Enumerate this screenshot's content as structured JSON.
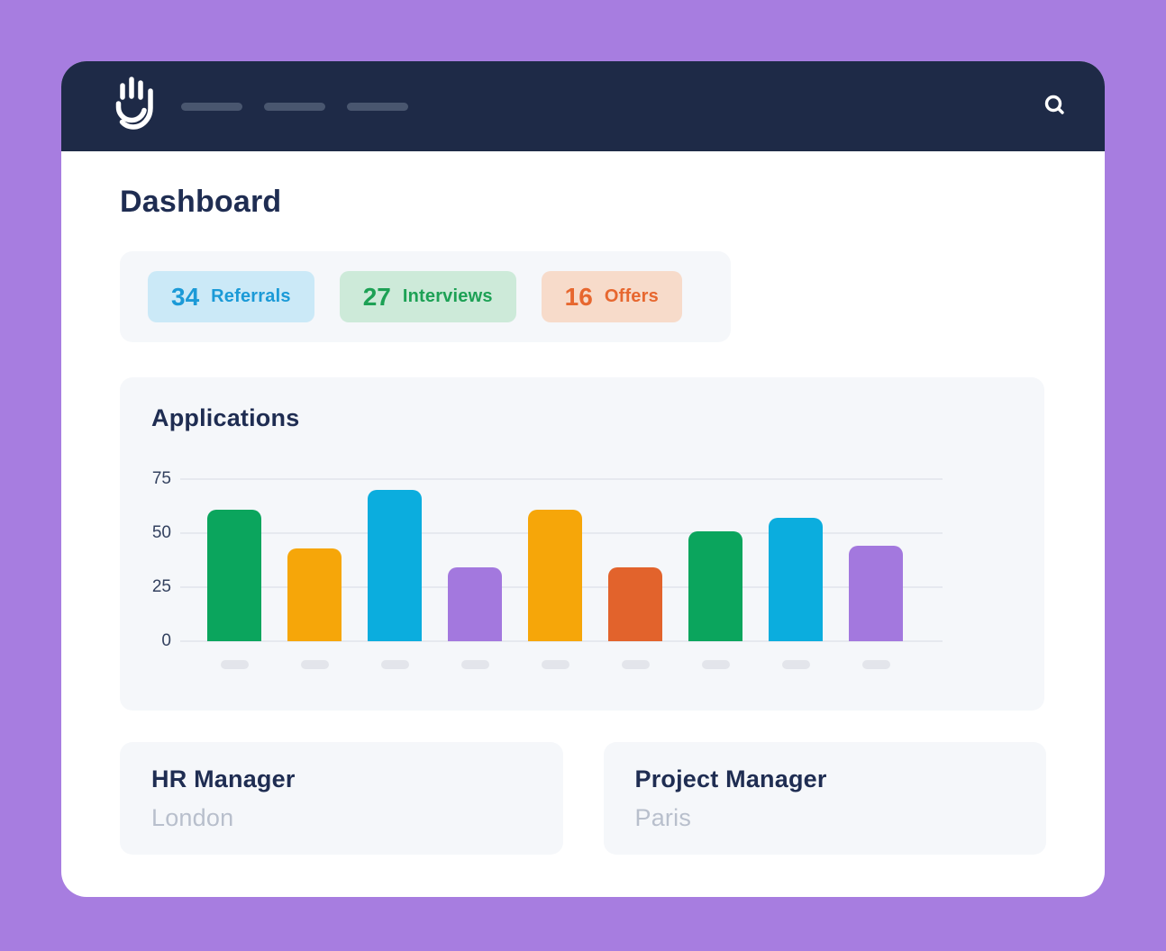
{
  "header": {
    "logo_icon": "hand-logo-icon",
    "search_icon": "search-icon",
    "nav_placeholders": [
      "",
      "",
      ""
    ]
  },
  "page": {
    "title": "Dashboard"
  },
  "stats": [
    {
      "value": "34",
      "label": "Referrals",
      "bg": "#cbe9f7",
      "color": "#1b9ad7"
    },
    {
      "value": "27",
      "label": "Interviews",
      "bg": "#cdead9",
      "color": "#1da155"
    },
    {
      "value": "16",
      "label": "Offers",
      "bg": "#f7dbca",
      "color": "#e7672f"
    }
  ],
  "chart_data": {
    "type": "bar",
    "title": "Applications",
    "values": [
      61,
      43,
      70,
      34,
      61,
      34,
      51,
      57,
      44
    ],
    "bar_colors": [
      "#0ba55d",
      "#f6a609",
      "#0badde",
      "#a378de",
      "#f6a609",
      "#e2632c",
      "#0ba55d",
      "#0badde",
      "#a378de"
    ],
    "categories": [
      "",
      "",
      "",
      "",
      "",
      "",
      "",
      "",
      ""
    ],
    "x_labels_are_placeholders": true,
    "yticks": [
      0,
      25,
      50,
      75
    ],
    "ylim": [
      0,
      75
    ],
    "grid": true,
    "xlabel": "",
    "ylabel": ""
  },
  "cards": [
    {
      "title": "HR Manager",
      "subtitle": "London"
    },
    {
      "title": "Project Manager",
      "subtitle": "Paris"
    }
  ],
  "colors": {
    "page_background": "#a77de0",
    "card_background": "#ffffff",
    "topbar_background": "#1e2a47",
    "panel_background": "#f5f7fa",
    "heading_text": "#1f2d52",
    "muted_text": "#b8bfcc",
    "gridline": "#e6e9ef",
    "axis_placeholder": "#e3e5eb",
    "nav_placeholder": "#49566f"
  }
}
